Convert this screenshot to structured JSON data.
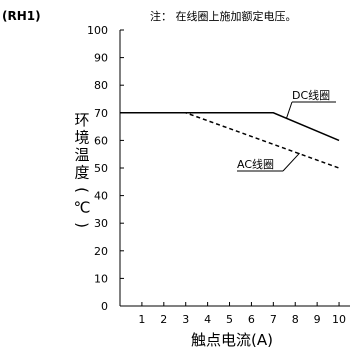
{
  "header": {
    "model": "(RH1)",
    "note": "注：  在线圈上施加额定电压。"
  },
  "chart_data": {
    "type": "line",
    "xlabel": "触点电流(A)",
    "ylabel": "环境温度(℃)",
    "x_ticks": [
      1,
      2,
      3,
      4,
      5,
      6,
      7,
      8,
      9,
      10
    ],
    "y_ticks": [
      0,
      10,
      20,
      30,
      40,
      50,
      60,
      70,
      80,
      90,
      100
    ],
    "xlim": [
      0,
      10.5
    ],
    "ylim": [
      0,
      100
    ],
    "grid": false,
    "series": [
      {
        "name": "DC线圈",
        "style": "solid",
        "color": "#000000",
        "x": [
          0,
          7,
          10
        ],
        "y": [
          70,
          70,
          60
        ]
      },
      {
        "name": "AC线圈",
        "style": "dashed",
        "color": "#000000",
        "x": [
          0,
          3,
          10
        ],
        "y": [
          70,
          70,
          50
        ]
      }
    ]
  }
}
